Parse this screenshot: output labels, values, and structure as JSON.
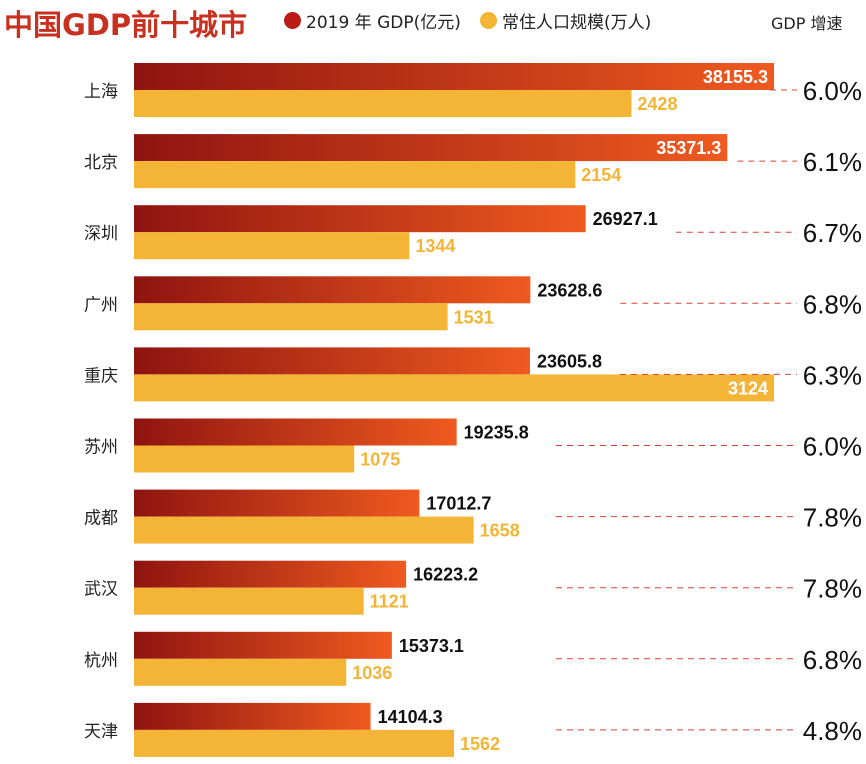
{
  "chart_data": {
    "type": "bar",
    "title": "中国GDP前十城市",
    "categories": [
      "上海",
      "北京",
      "深圳",
      "广州",
      "重庆",
      "苏州",
      "成都",
      "武汉",
      "杭州",
      "天津"
    ],
    "series": [
      {
        "name": "2019 年 GDP(亿元)",
        "values": [
          38155.3,
          35371.3,
          26927.1,
          23628.6,
          23605.8,
          19235.8,
          17012.7,
          16223.2,
          15373.1,
          14104.3
        ],
        "labels": [
          "38155.3",
          "35371.3",
          "26927.1",
          "23628.6",
          "23605.8",
          "19235.8",
          "17012.7",
          "16223.2",
          "15373.1",
          "14104.3"
        ]
      },
      {
        "name": "常住人口规模(万人)",
        "values": [
          2428,
          2154,
          1344,
          1531,
          3124,
          1075,
          1658,
          1121,
          1036,
          1562
        ],
        "labels": [
          "2428",
          "2154",
          "1344",
          "1531",
          "3124",
          "1075",
          "1658",
          "1121",
          "1036",
          "1562"
        ]
      }
    ],
    "growth_header": "GDP 增速",
    "growth": [
      "6.0%",
      "6.1%",
      "6.7%",
      "6.8%",
      "6.3%",
      "6.0%",
      "7.8%",
      "7.8%",
      "6.8%",
      "4.8%"
    ],
    "colors": {
      "gdp_dark": "#8f1410",
      "gdp_light": "#ef5a1f",
      "population": "#f4b536",
      "title": "#c8301f",
      "dash": "#d2453a"
    }
  }
}
